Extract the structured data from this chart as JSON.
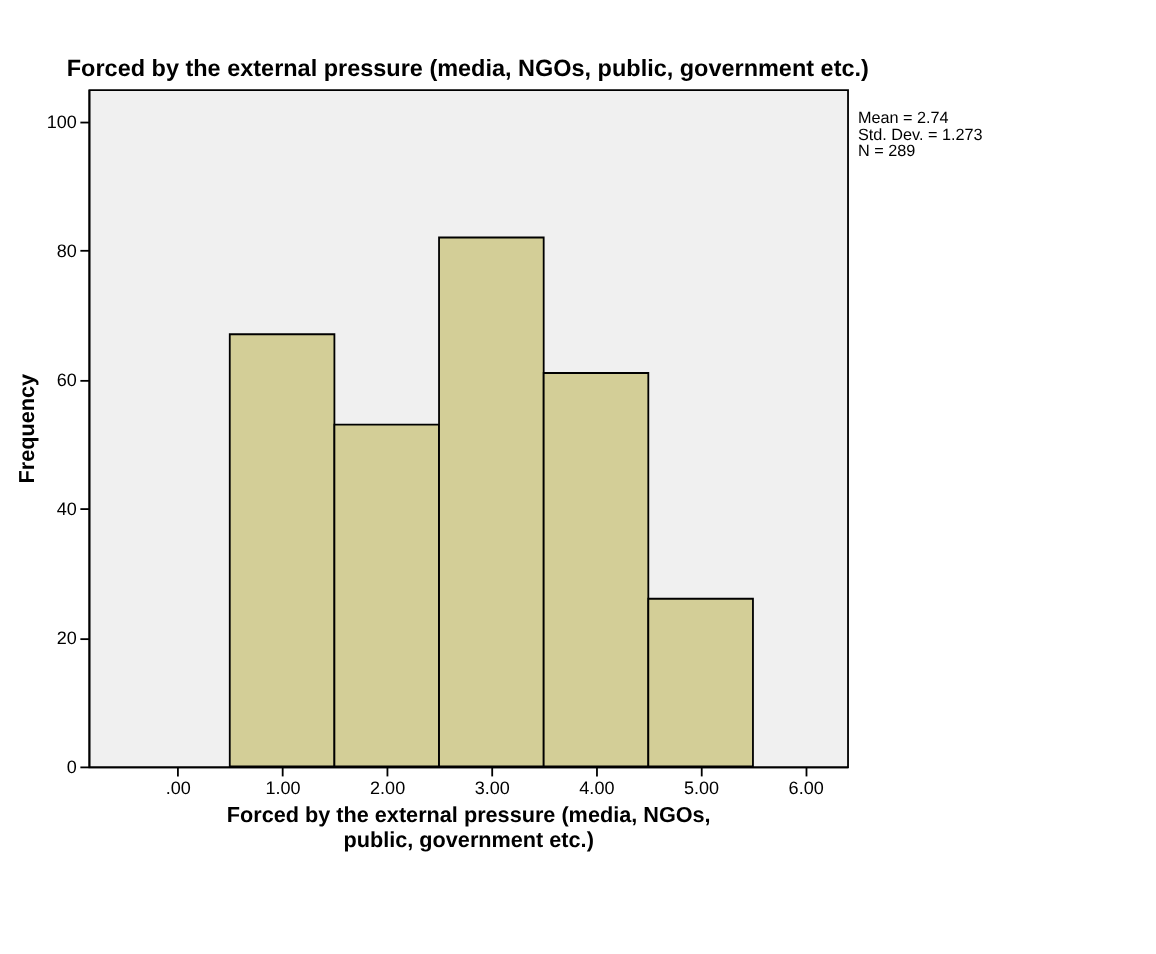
{
  "chart_data": {
    "type": "histogram",
    "title": "Forced by the external pressure (media, NGOs, public, government etc.)",
    "xlabel": "Forced by the external pressure (media, NGOs, public, government etc.)",
    "ylabel": "Frequency",
    "bins": [
      0.5,
      1.5,
      2.5,
      3.5,
      4.5,
      5.5
    ],
    "values": [
      67,
      53,
      82,
      61,
      26
    ],
    "color": "#d3ce97",
    "xlim": [
      -0.85,
      6.4
    ],
    "ylim": [
      0,
      105
    ],
    "xticks": [
      {
        "value": 0,
        "label": ".00"
      },
      {
        "value": 1,
        "label": "1.00"
      },
      {
        "value": 2,
        "label": "2.00"
      },
      {
        "value": 3,
        "label": "3.00"
      },
      {
        "value": 4,
        "label": "4.00"
      },
      {
        "value": 5,
        "label": "5.00"
      },
      {
        "value": 6,
        "label": "6.00"
      }
    ],
    "yticks": [
      0,
      20,
      40,
      60,
      80,
      100
    ],
    "grid": false,
    "annotations": [
      "Mean = 2.74",
      "Std. Dev. = 1.273",
      "N = 289"
    ]
  }
}
